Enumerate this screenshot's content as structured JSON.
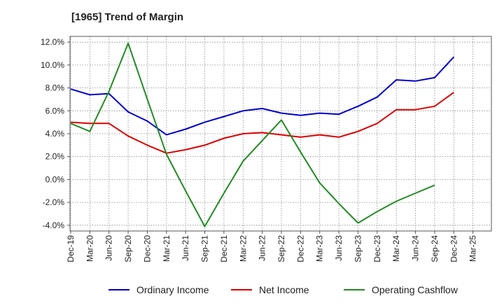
{
  "chart_data": {
    "type": "line",
    "title": "[1965]  Trend of Margin",
    "xlabel": "",
    "ylabel": "",
    "categories": [
      "Dec-19",
      "Mar-20",
      "Jun-20",
      "Sep-20",
      "Dec-20",
      "Mar-21",
      "Jun-21",
      "Sep-21",
      "Dec-21",
      "Mar-22",
      "Jun-22",
      "Sep-22",
      "Dec-22",
      "Mar-23",
      "Jun-23",
      "Sep-23",
      "Dec-23",
      "Mar-24",
      "Jun-24",
      "Sep-24",
      "Dec-24",
      "Mar-25"
    ],
    "ylim": [
      -4.5,
      12.5
    ],
    "yticks": [
      12,
      10,
      8,
      6,
      4,
      2,
      0,
      -2,
      -4
    ],
    "ytick_labels": [
      "12.0%",
      "10.0%",
      "8.0%",
      "6.0%",
      "4.0%",
      "2.0%",
      "0.0%",
      "-2.0%",
      "-4.0%"
    ],
    "grid": true,
    "legend_position": "bottom",
    "series": [
      {
        "name": "Ordinary Income",
        "color": "#0000cc",
        "values": [
          7.9,
          7.4,
          7.5,
          5.9,
          5.1,
          3.9,
          4.4,
          5.0,
          5.5,
          6.0,
          6.2,
          5.8,
          5.6,
          5.8,
          5.7,
          6.4,
          7.2,
          8.7,
          8.6,
          8.9,
          10.7,
          null
        ]
      },
      {
        "name": "Net Income",
        "color": "#dd0000",
        "values": [
          5.0,
          4.9,
          4.9,
          3.8,
          3.0,
          2.3,
          2.6,
          3.0,
          3.6,
          4.0,
          4.1,
          3.9,
          3.7,
          3.9,
          3.7,
          4.2,
          4.9,
          6.1,
          6.1,
          6.4,
          7.6,
          null
        ]
      },
      {
        "name": "Operating Cashflow",
        "color": "#228b22",
        "values": [
          4.9,
          4.2,
          7.7,
          11.9,
          7.0,
          2.2,
          -1.0,
          -4.1,
          -1.2,
          1.6,
          3.4,
          5.2,
          2.4,
          -0.3,
          -2.1,
          -3.8,
          -2.8,
          -1.9,
          -1.2,
          -0.5,
          null,
          null
        ]
      }
    ]
  }
}
